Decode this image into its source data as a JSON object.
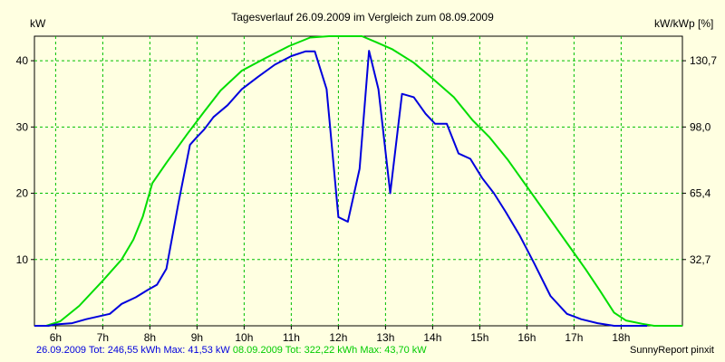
{
  "chart_data": {
    "type": "line",
    "title": "Tagesverlauf 26.09.2009 im Vergleich zum 08.09.2009",
    "ylabel_left": "kW",
    "ylabel_right": "kW/kWp [%]",
    "xlim": [
      5.55,
      19.3
    ],
    "ylim": [
      0,
      43.7
    ],
    "x_ticks": [
      6,
      7,
      8,
      9,
      10,
      11,
      12,
      13,
      14,
      15,
      16,
      17,
      18
    ],
    "x_tick_labels": [
      "6h",
      "7h",
      "8h",
      "9h",
      "10h",
      "11h",
      "12h",
      "13h",
      "14h",
      "15h",
      "16h",
      "17h",
      "18h"
    ],
    "y_ticks": [
      10,
      20,
      30,
      40
    ],
    "y_tick_labels": [
      "10",
      "20",
      "30",
      "40"
    ],
    "y2_tick_values": [
      10,
      20,
      30,
      40
    ],
    "y2_tick_labels": [
      "32,7",
      "65,4",
      "98,0",
      "130,7"
    ],
    "grid": true,
    "series": [
      {
        "name": "26.09.2009",
        "color": "#0000dd",
        "x": [
          5.55,
          5.85,
          6.0,
          6.35,
          6.65,
          7.15,
          7.4,
          7.7,
          7.95,
          8.15,
          8.35,
          8.6,
          8.85,
          9.0,
          9.15,
          9.35,
          9.65,
          9.95,
          10.3,
          10.65,
          11.0,
          11.3,
          11.5,
          11.75,
          12.0,
          12.2,
          12.45,
          12.65,
          12.85,
          13.1,
          13.35,
          13.6,
          13.85,
          14.05,
          14.3,
          14.55,
          14.8,
          15.05,
          15.3,
          15.55,
          15.85,
          16.15,
          16.5,
          16.85,
          17.15,
          17.5,
          17.85,
          18.15,
          18.4,
          18.55
        ],
        "y": [
          0.0,
          0.0,
          0.2,
          0.4,
          1.0,
          1.8,
          3.3,
          4.3,
          5.4,
          6.2,
          8.6,
          18.3,
          27.3,
          28.5,
          29.6,
          31.5,
          33.3,
          35.7,
          37.6,
          39.4,
          40.7,
          41.4,
          41.4,
          35.7,
          16.4,
          15.7,
          23.7,
          41.5,
          35.7,
          20.0,
          35.0,
          34.5,
          32.0,
          30.5,
          30.5,
          26.0,
          25.2,
          22.3,
          20.0,
          17.2,
          13.6,
          9.5,
          4.5,
          1.8,
          1.0,
          0.4,
          0.0,
          0.0,
          0.0,
          0.0
        ]
      },
      {
        "name": "08.09.2009",
        "color": "#00dd00",
        "x": [
          5.55,
          5.8,
          6.1,
          6.5,
          7.0,
          7.4,
          7.65,
          7.85,
          8.05,
          8.35,
          8.8,
          9.15,
          9.5,
          9.95,
          10.45,
          10.95,
          11.4,
          11.8,
          12.1,
          12.5,
          12.8,
          13.15,
          13.6,
          14.0,
          14.45,
          14.85,
          15.2,
          15.6,
          16.0,
          16.4,
          16.85,
          17.25,
          17.55,
          17.85,
          18.1,
          18.45,
          18.7,
          18.9,
          19.15,
          19.3
        ],
        "y": [
          0.0,
          0.0,
          0.7,
          3.0,
          6.8,
          10.0,
          13.0,
          16.5,
          21.5,
          24.6,
          29.0,
          32.3,
          35.5,
          38.5,
          40.4,
          42.2,
          43.5,
          43.7,
          43.7,
          43.7,
          42.8,
          41.7,
          39.7,
          37.3,
          34.5,
          31.0,
          28.5,
          25.0,
          21.0,
          17.0,
          12.5,
          8.5,
          5.3,
          2.0,
          0.8,
          0.3,
          0.0,
          0.0,
          0.0,
          0.0
        ]
      }
    ],
    "legend": [
      {
        "text": "26.09.2009 Tot: 246,55 kWh Max: 41,53 kW",
        "color": "#0000dd"
      },
      {
        "text": "08.09.2009 Tot: 322,22 kWh Max: 43,70 kW",
        "color": "#00cc00"
      }
    ],
    "credit": "SunnyReport pinxit"
  }
}
